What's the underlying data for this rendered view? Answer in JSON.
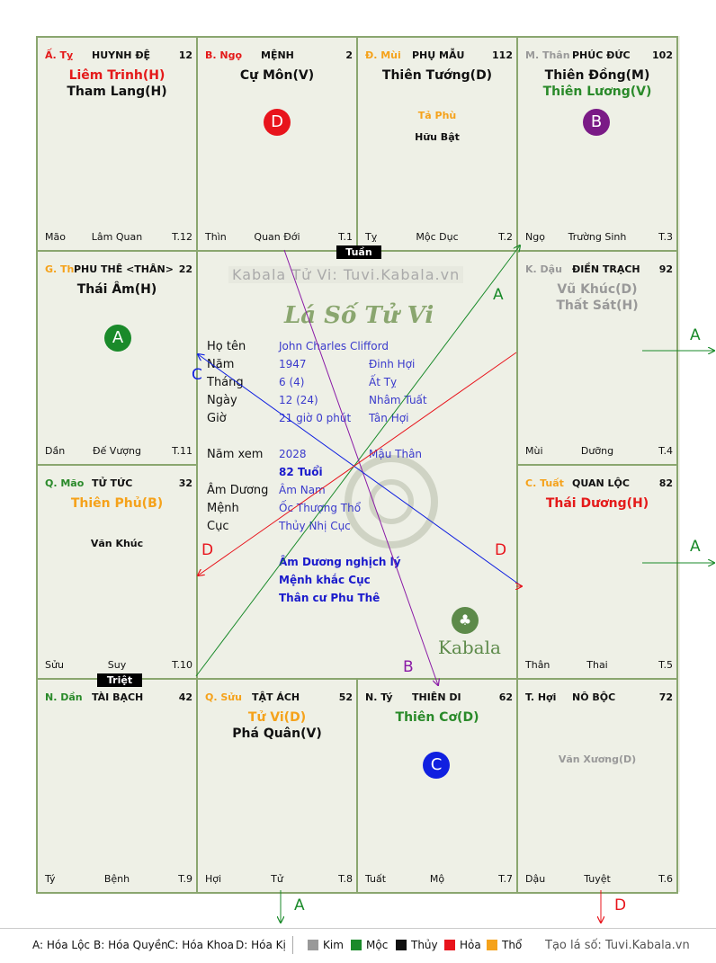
{
  "palaces": [
    {
      "branch_tag": "Ấ. Tỵ",
      "name": "HUYNH ĐỆ",
      "number": "12",
      "stars": [
        "Liêm Trinh(H)",
        "Tham Lang(H)"
      ],
      "minor": [],
      "bottom_left": "Mão",
      "bottom_mid": "Lâm Quan",
      "bottom_right": "T.12",
      "tag_color": "#e41a1a",
      "star_colors": [
        "#e41a1a",
        "#111111"
      ]
    },
    {
      "branch_tag": "B. Ngọ",
      "name": "MỆNH",
      "number": "2",
      "stars": [
        "Cự Môn(V)"
      ],
      "minor": [],
      "bottom_left": "Thìn",
      "bottom_mid": "Quan Đới",
      "bottom_right": "T.1",
      "tag_color": "#e41a1a",
      "star_colors": [
        "#111111"
      ]
    },
    {
      "branch_tag": "Đ. Mùi",
      "name": "PHỤ MẪU",
      "number": "112",
      "stars": [
        "Thiên Tướng(D)"
      ],
      "minor": [
        "Tả Phù",
        "Hữu Bật"
      ],
      "bottom_left": "Tỵ",
      "bottom_mid": "Mộc Dục",
      "bottom_right": "T.2",
      "tag_color": "#f5a21b",
      "star_colors": [
        "#111111"
      ],
      "minor_colors": [
        "#f5a21b",
        "#111111"
      ]
    },
    {
      "branch_tag": "M. Thân",
      "name": "PHÚC ĐỨC",
      "number": "102",
      "stars": [
        "Thiên Đồng(M)",
        "Thiên Lương(V)"
      ],
      "minor": [],
      "bottom_left": "Ngọ",
      "bottom_mid": "Trường Sinh",
      "bottom_right": "T.3",
      "tag_color": "#999999",
      "star_colors": [
        "#111111",
        "#2a8a2a"
      ]
    },
    {
      "branch_tag": "K. Dậu",
      "name": "ĐIỀN TRẠCH",
      "number": "92",
      "stars": [
        "Vũ Khúc(D)",
        "Thất Sát(H)"
      ],
      "minor": [],
      "bottom_left": "Mùi",
      "bottom_mid": "Dưỡng",
      "bottom_right": "T.4",
      "tag_color": "#999999",
      "star_colors": [
        "#999999",
        "#999999"
      ]
    },
    {
      "branch_tag": "C. Tuất",
      "name": "QUAN LỘC",
      "number": "82",
      "stars": [
        "Thái Dương(H)"
      ],
      "minor": [],
      "bottom_left": "Thân",
      "bottom_mid": "Thai",
      "bottom_right": "T.5",
      "tag_color": "#f5a21b",
      "star_colors": [
        "#e41a1a"
      ]
    },
    {
      "branch_tag": "T. Hợi",
      "name": "NÔ BỘC",
      "number": "72",
      "stars": [],
      "minor": [
        "Văn Xương(D)"
      ],
      "bottom_left": "Dậu",
      "bottom_mid": "Tuyệt",
      "bottom_right": "T.6",
      "tag_color": "#111111",
      "minor_colors": [
        "#999999"
      ]
    },
    {
      "branch_tag": "N. Tý",
      "name": "THIÊN DI",
      "number": "62",
      "stars": [
        "Thiên Cơ(D)"
      ],
      "minor": [],
      "bottom_left": "Tuất",
      "bottom_mid": "Mộ",
      "bottom_right": "T.7",
      "tag_color": "#111111",
      "star_colors": [
        "#2a8a2a"
      ]
    },
    {
      "branch_tag": "Q. Sửu",
      "name": "TẬT ÁCH",
      "number": "52",
      "stars": [
        "Tử Vi(D)",
        "Phá Quân(V)"
      ],
      "minor": [],
      "bottom_left": "Hợi",
      "bottom_mid": "Tử",
      "bottom_right": "T.8",
      "tag_color": "#f5a21b",
      "star_colors": [
        "#f5a21b",
        "#111111"
      ]
    },
    {
      "branch_tag": "N. Dần",
      "name": "TÀI BẠCH",
      "number": "42",
      "stars": [],
      "minor": [],
      "bottom_left": "Tý",
      "bottom_mid": "Bệnh",
      "bottom_right": "T.9",
      "tag_color": "#2a8a2a"
    },
    {
      "branch_tag": "Q. Mão",
      "name": "TỬ TỨC",
      "number": "32",
      "stars": [
        "Thiên Phủ(B)"
      ],
      "minor": [
        "Văn Khúc"
      ],
      "bottom_left": "Sửu",
      "bottom_mid": "Suy",
      "bottom_right": "T.10",
      "tag_color": "#2a8a2a",
      "star_colors": [
        "#f5a21b"
      ],
      "minor_colors": [
        "#111111"
      ]
    },
    {
      "branch_tag": "G. Th",
      "name": "PHU THÊ <THÂN>",
      "number": "22",
      "stars": [
        "Thái Âm(H)"
      ],
      "minor": [],
      "bottom_left": "Dần",
      "bottom_mid": "Đế Vượng",
      "bottom_right": "T.11",
      "tag_color": "#f5a21b",
      "star_colors": [
        "#111111"
      ]
    }
  ],
  "badges": [
    {
      "letter": "D",
      "color": "#e8141c"
    },
    {
      "letter": "B",
      "color": "#7a1a86"
    },
    {
      "letter": "A",
      "color": "#1a8a2a"
    },
    {
      "letter": "C",
      "color": "#1020e0"
    }
  ],
  "tuan_label": "Tuần",
  "triet_label": "Triệt",
  "watermark": "Kabala Tử Vi: Tuvi.Kabala.vn",
  "center_title": "Lá Số Tử Vi",
  "center_logo": "Kabala",
  "info": {
    "ho_ten_label": "Họ tên",
    "ho_ten": "John Charles Clifford",
    "nam_label": "Năm",
    "nam": "1947",
    "nam_can": "Đinh Hợi",
    "thang_label": "Tháng",
    "thang": "6  (4)",
    "thang_can": "Ất Tỵ",
    "ngay_label": "Ngày",
    "ngay": "12  (24)",
    "ngay_can": "Nhâm Tuất",
    "gio_label": "Giờ",
    "gio": "21 giờ 0 phút",
    "gio_can": "Tân Hợi",
    "nam_xem_label": "Năm xem",
    "nam_xem": "2028",
    "nam_xem_can": "Mậu Thân",
    "tuoi": "82 Tuổi",
    "am_duong_label": "Âm Dương",
    "am_duong": "Âm Nam",
    "menh_label": "Mệnh",
    "menh": "Ốc Thượng Thổ",
    "cuc_label": "Cục",
    "cuc": "Thủy Nhị Cục",
    "notes": [
      "Âm Dương nghịch lý",
      "Mệnh khắc Cục",
      "Thân cư Phu Thê"
    ]
  },
  "arrow_labels": [
    "A",
    "A",
    "A",
    "A",
    "B",
    "C",
    "D",
    "D",
    "D"
  ],
  "legend": {
    "hoa_loc": "A: Hóa Lộc",
    "hoa_quyen": "B: Hóa Quyền",
    "hoa_khoa": "C: Hóa Khoa",
    "hoa_ki": "D: Hóa Kị",
    "elements": [
      {
        "name": "Kim",
        "color": "#999999"
      },
      {
        "name": "Mộc",
        "color": "#1a8a2a"
      },
      {
        "name": "Thủy",
        "color": "#111111"
      },
      {
        "name": "Hỏa",
        "color": "#e8141c"
      },
      {
        "name": "Thổ",
        "color": "#f5a21b"
      }
    ],
    "source": "Tạo lá số: Tuvi.Kabala.vn"
  }
}
